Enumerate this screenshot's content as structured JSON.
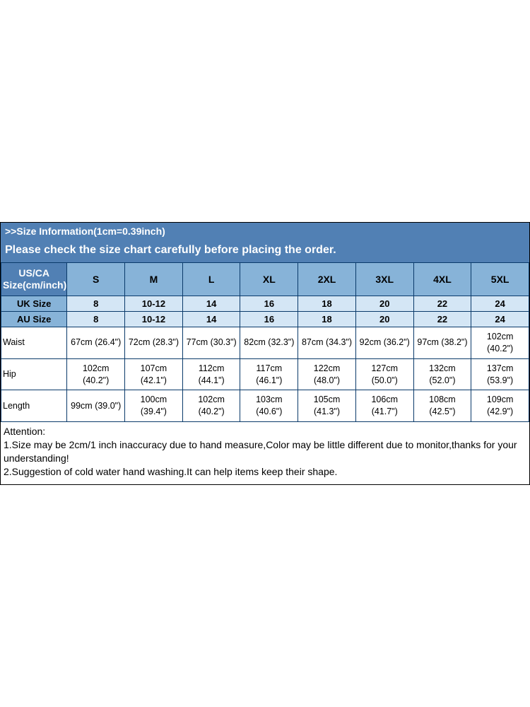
{
  "header": {
    "title": ">>Size Information(1cm=0.39inch)",
    "subtitle": "Please check the size chart carefully before placing the order."
  },
  "table": {
    "first_header": "US/CA Size(cm/inch)",
    "sizes": [
      "S",
      "M",
      "L",
      "XL",
      "2XL",
      "3XL",
      "4XL",
      "5XL"
    ],
    "uk_label": "UK Size",
    "uk_values": [
      "8",
      "10-12",
      "14",
      "16",
      "18",
      "20",
      "22",
      "24"
    ],
    "au_label": "AU Size",
    "au_values": [
      "8",
      "10-12",
      "14",
      "16",
      "18",
      "20",
      "22",
      "24"
    ],
    "measurements": [
      {
        "label": "Waist",
        "values": [
          "67cm (26.4\")",
          "72cm (28.3\")",
          "77cm (30.3\")",
          "82cm (32.3\")",
          "87cm (34.3\")",
          "92cm (36.2\")",
          "97cm (38.2\")",
          "102cm (40.2\")"
        ]
      },
      {
        "label": "Hip",
        "values": [
          "102cm (40.2\")",
          "107cm (42.1\")",
          "112cm (44.1\")",
          "117cm (46.1\")",
          "122cm (48.0\")",
          "127cm (50.0\")",
          "132cm (52.0\")",
          "137cm (53.9\")"
        ]
      },
      {
        "label": "Length",
        "values": [
          "99cm (39.0\")",
          "100cm (39.4\")",
          "102cm (40.2\")",
          "103cm (40.6\")",
          "105cm (41.3\")",
          "106cm (41.7\")",
          "108cm (42.5\")",
          "109cm (42.9\")"
        ]
      }
    ]
  },
  "attention": {
    "heading": "Attention:",
    "line1": "1.Size may be 2cm/1 inch inaccuracy due to hand measure,Color may be little different due to monitor,thanks for your understanding!",
    "line2": "2.Suggestion of cold water hand washing.It can help items keep their shape."
  },
  "style": {
    "header_bg": "#5180b4",
    "header_text": "#ffffff",
    "label_bg": "#87b3d8",
    "alt_bg": "#d4e6f5",
    "cell_bg": "#ffffff",
    "border_color": "#0a3a6a",
    "outer_border": "#000000",
    "font_family": "Arial, sans-serif"
  }
}
